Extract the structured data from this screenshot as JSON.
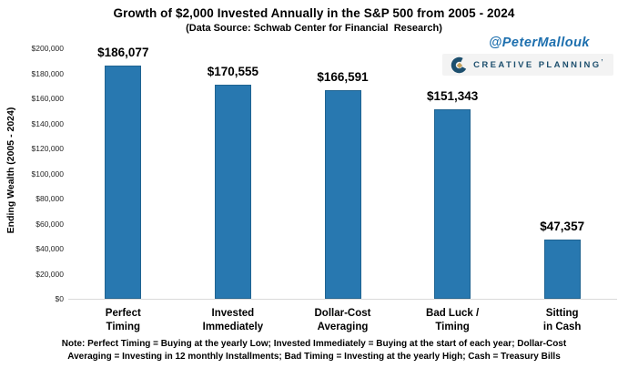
{
  "header": {
    "title": "Growth of $2,000 Invested Annually in the S&P 500 from 2005 - 2024",
    "subtitle": "(Data Source: Schwab Center for Financial  Research)",
    "handle": "@PeterMallouk"
  },
  "branding": {
    "logo_icon": "creative-planning-c-logo",
    "logo_text": "CREATIVE PLANNING",
    "logo_trademark": "’",
    "logo_navy": "#1d4f6e",
    "logo_gold": "#c6a15b"
  },
  "chart_data": {
    "type": "bar",
    "title": "Growth of $2,000 Invested Annually in the S&P 500 from 2005 - 2024",
    "subtitle": "(Data Source: Schwab Center for Financial Research)",
    "categories": [
      "Perfect Timing",
      "Invested Immediately",
      "Dollar-Cost Averaging",
      "Bad Luck / Timing",
      "Sitting in Cash"
    ],
    "category_labels": [
      "Perfect\nTiming",
      "Invested\nImmediately",
      "Dollar-Cost\nAveraging",
      "Bad Luck /\nTiming",
      "Sitting\nin Cash"
    ],
    "values": [
      186077,
      170555,
      166591,
      151343,
      47357
    ],
    "value_labels": [
      "$186,077",
      "$170,555",
      "$166,591",
      "$151,343",
      "$47,357"
    ],
    "xlabel": "",
    "ylabel": "Ending Wealth (2005 - 2024)",
    "ylim": [
      0,
      200000
    ],
    "ytick_interval": 20000,
    "ytick_labels": [
      "$0",
      "$20,000",
      "$40,000",
      "$60,000",
      "$80,000",
      "$100,000",
      "$120,000",
      "$140,000",
      "$160,000",
      "$180,000",
      "$200,000"
    ],
    "grid": false,
    "legend": "none",
    "bar_color": "#2878b0",
    "bar_edge_color": "#1f6391"
  },
  "footer": {
    "note_line1": "Note: Perfect Timing = Buying at the yearly Low; Invested Immediately = Buying at the start of each year; Dollar-Cost",
    "note_line2": "Averaging = Investing in 12 monthly Installments; Bad Timing = Investing at the yearly High; Cash = Treasury Bills"
  },
  "colors": {
    "handle_blue": "#1d6fae",
    "axis_line_gray": "#d9d9d9",
    "text_black": "#000000"
  }
}
